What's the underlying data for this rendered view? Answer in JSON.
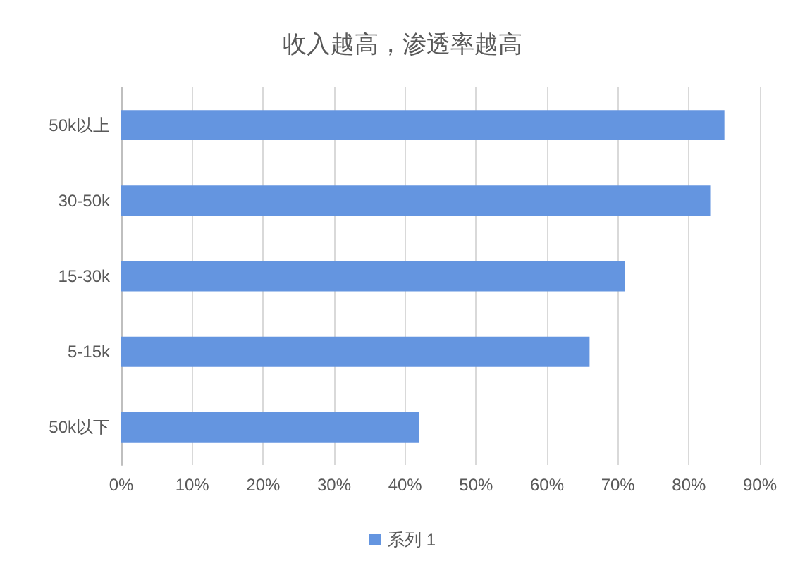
{
  "chart_data": {
    "type": "bar",
    "orientation": "horizontal",
    "title": "收入越高，渗透率越高",
    "categories": [
      "50k以上",
      "30-50k",
      "15-30k",
      "5-15k",
      "50k以下"
    ],
    "series": [
      {
        "name": "系列 1",
        "color": "#6495e0",
        "values": [
          85,
          83,
          71,
          66,
          42
        ]
      }
    ],
    "xlim": [
      0,
      90
    ],
    "xticks": [
      {
        "value": 0,
        "label": "0%"
      },
      {
        "value": 10,
        "label": "10%"
      },
      {
        "value": 20,
        "label": "20%"
      },
      {
        "value": 30,
        "label": "30%"
      },
      {
        "value": 40,
        "label": "40%"
      },
      {
        "value": 50,
        "label": "50%"
      },
      {
        "value": 60,
        "label": "60%"
      },
      {
        "value": 70,
        "label": "70%"
      },
      {
        "value": 80,
        "label": "80%"
      },
      {
        "value": 90,
        "label": "90%"
      }
    ],
    "grid": "x",
    "legend": "bottom"
  }
}
